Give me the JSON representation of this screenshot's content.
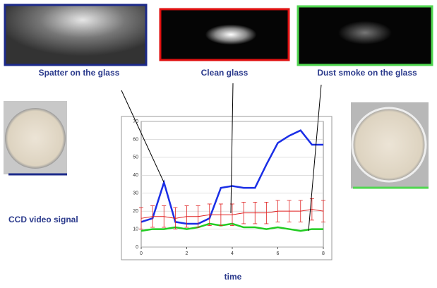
{
  "chart_data": {
    "type": "line",
    "annotations": [
      "Spatter on the glass",
      "Clean glass",
      "Dust smoke on the glass",
      "CCD video signal"
    ],
    "xlabel": "time",
    "x": [
      0,
      0.5,
      1,
      1.5,
      2,
      2.5,
      3,
      3.5,
      4,
      4.5,
      5,
      5.5,
      6,
      6.5,
      7,
      7.5,
      8
    ],
    "series": [
      {
        "color": "#1a2ee6",
        "values": [
          14,
          16,
          36,
          14,
          13,
          13,
          16,
          33,
          34,
          33,
          33,
          46,
          58,
          62,
          65,
          57,
          57
        ]
      },
      {
        "color": "#22cc22",
        "values": [
          9,
          10,
          10,
          11,
          10,
          11,
          13,
          12,
          13,
          11,
          11,
          10,
          11,
          10,
          9,
          10,
          10
        ]
      },
      {
        "color": "#e02020",
        "values": [
          16,
          17,
          17,
          16,
          17,
          17,
          18,
          18,
          18,
          19,
          19,
          19,
          20,
          20,
          20,
          21,
          20
        ],
        "errors": [
          6,
          6,
          6,
          6,
          6,
          6,
          6,
          6,
          6,
          6,
          6,
          6,
          6,
          6,
          6,
          6,
          6
        ]
      }
    ],
    "xlim": [
      0,
      8
    ],
    "xticks": [
      0,
      2,
      4,
      6,
      8
    ],
    "ylim": [
      0,
      70
    ],
    "yticks": [
      0,
      10,
      20,
      30,
      40,
      50,
      60,
      70
    ],
    "grid": true
  }
}
